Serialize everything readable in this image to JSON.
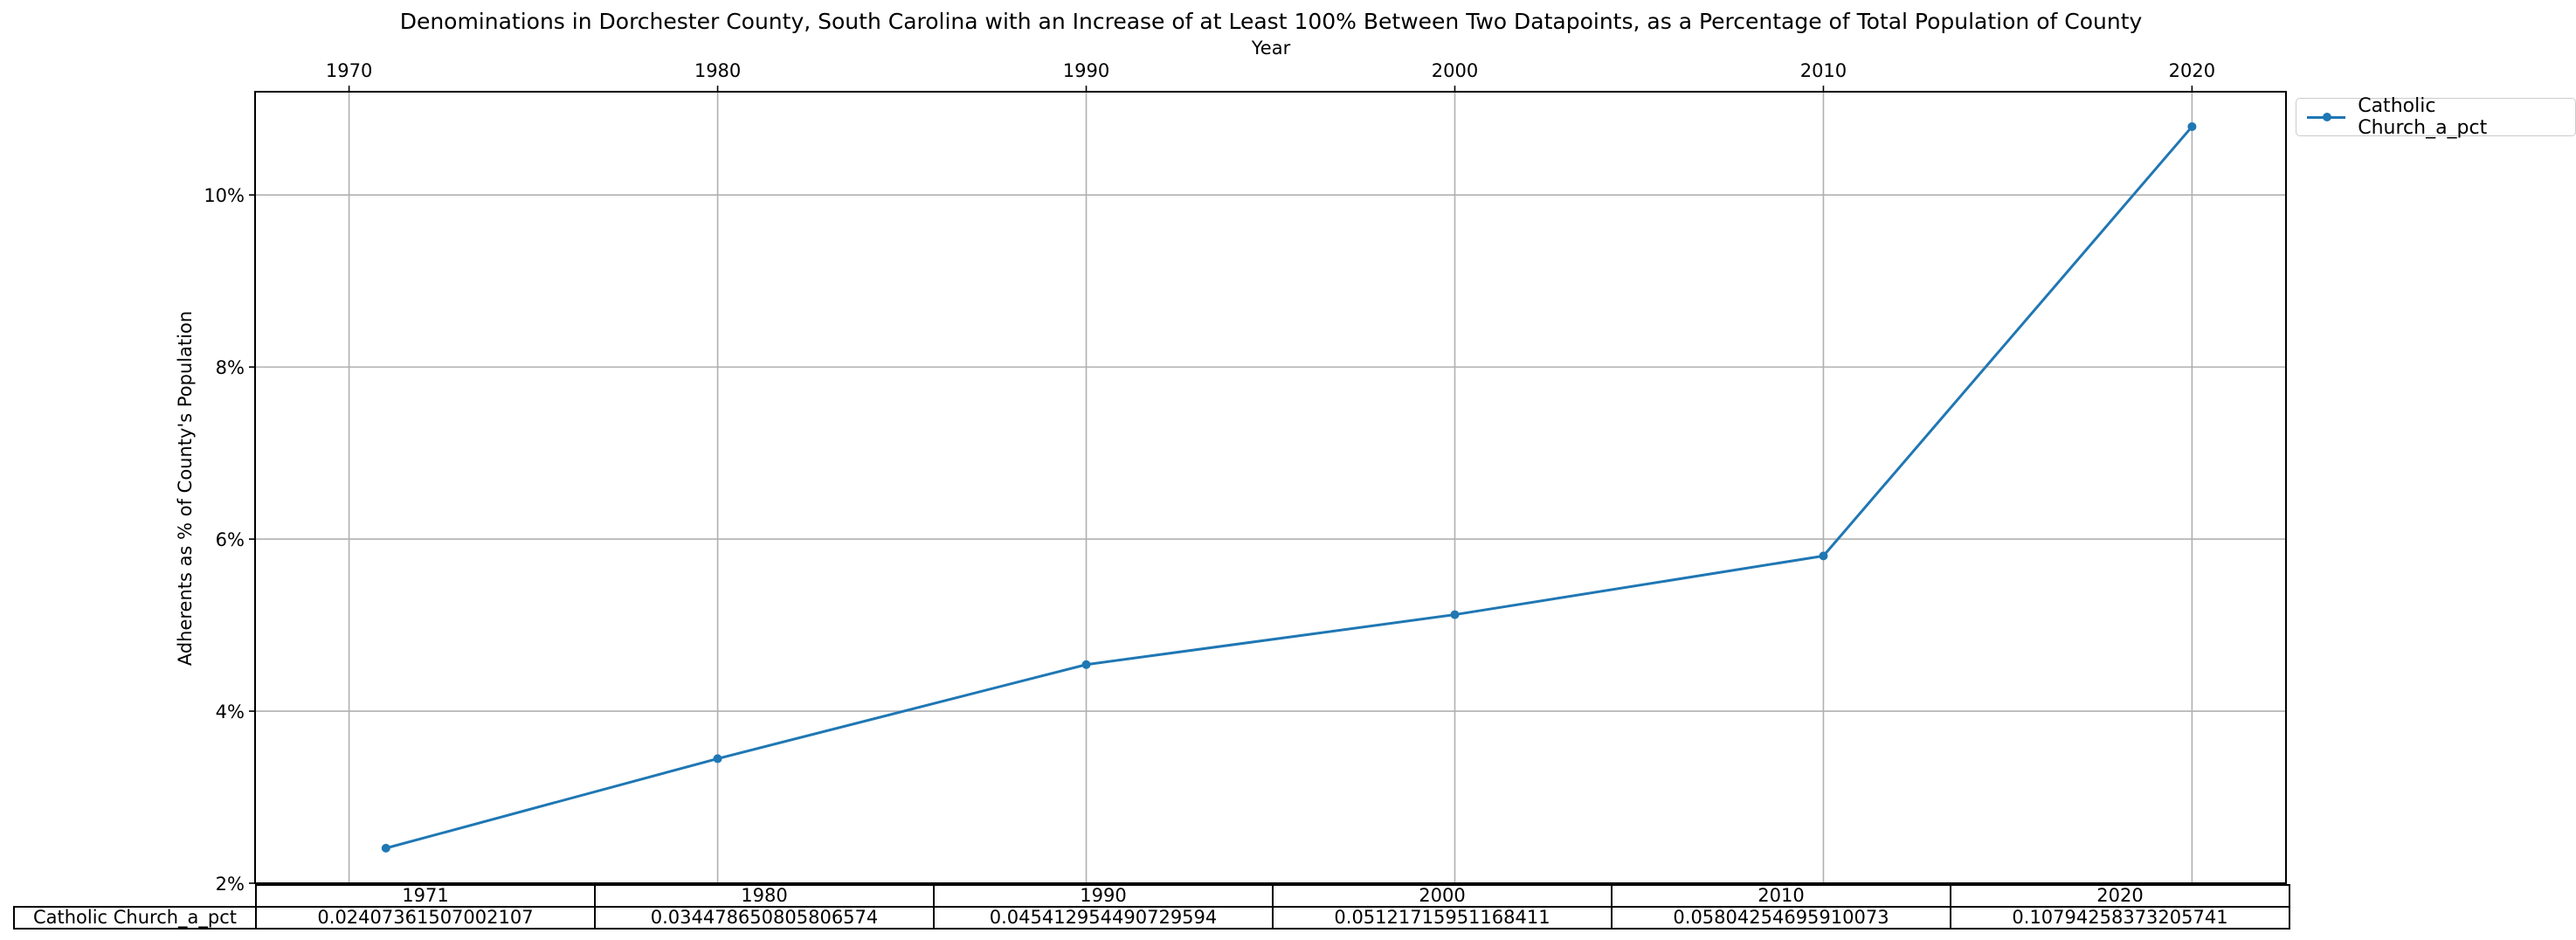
{
  "chart_data": {
    "type": "line",
    "title": "Denominations in Dorchester County, South Carolina with an Increase of at Least 100% Between Two Datapoints, as a Percentage of Total Population of County",
    "xlabel": "Year",
    "ylabel": "Adherents as % of County's Population",
    "x_ticks": [
      "1970",
      "1980",
      "1990",
      "2000",
      "2010",
      "2020"
    ],
    "y_ticks": [
      "2%",
      "4%",
      "6%",
      "8%",
      "10%"
    ],
    "xlim": [
      1967.45,
      2022.55
    ],
    "ylim": [
      0.02,
      0.112
    ],
    "grid": true,
    "x_axis_position": "top",
    "legend_position": "outside-top-right",
    "colors": {
      "series": "#1f77b4",
      "grid": "#b0b0b0"
    },
    "x": [
      1971,
      1980,
      1990,
      2000,
      2010,
      2020
    ],
    "series": [
      {
        "name": "Catholic Church_a_pct",
        "values": [
          0.02407361507002107,
          0.034478650805806574,
          0.045412954490729594,
          0.05121715951168411,
          0.05804254695910073,
          0.10794258373205741
        ]
      }
    ],
    "table": {
      "columns": [
        "1971",
        "1980",
        "1990",
        "2000",
        "2010",
        "2020"
      ],
      "rows": [
        {
          "label": "Catholic Church_a_pct",
          "cells": [
            "0.02407361507002107",
            "0.034478650805806574",
            "0.045412954490729594",
            "0.05121715951168411",
            "0.05804254695910073",
            "0.10794258373205741"
          ]
        }
      ]
    }
  }
}
